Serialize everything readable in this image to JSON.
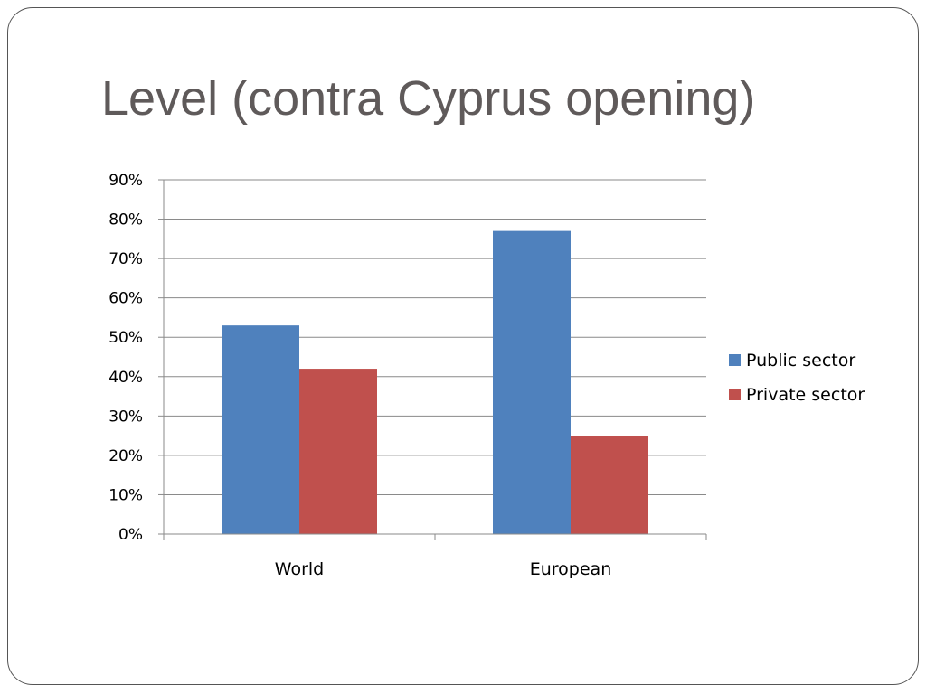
{
  "slide": {
    "title": "Level (contra Cyprus opening)"
  },
  "chart_data": {
    "type": "bar",
    "categories": [
      "World",
      "European"
    ],
    "series": [
      {
        "name": "Public sector",
        "values": [
          0.53,
          0.77
        ],
        "color": "#4f81bd"
      },
      {
        "name": "Private sector",
        "values": [
          0.42,
          0.25
        ],
        "color": "#c0504d"
      }
    ],
    "title": "",
    "xlabel": "",
    "ylabel": "",
    "ylim": [
      0,
      0.9
    ],
    "yticks": [
      0,
      0.1,
      0.2,
      0.3,
      0.4,
      0.5,
      0.6,
      0.7,
      0.8,
      0.9
    ],
    "ytick_labels": [
      "0%",
      "10%",
      "20%",
      "30%",
      "40%",
      "50%",
      "60%",
      "70%",
      "80%",
      "90%"
    ],
    "grid": true,
    "legend_position": "right",
    "gridline_color": "#8a8a8a",
    "axis_color": "#8a8a8a"
  }
}
